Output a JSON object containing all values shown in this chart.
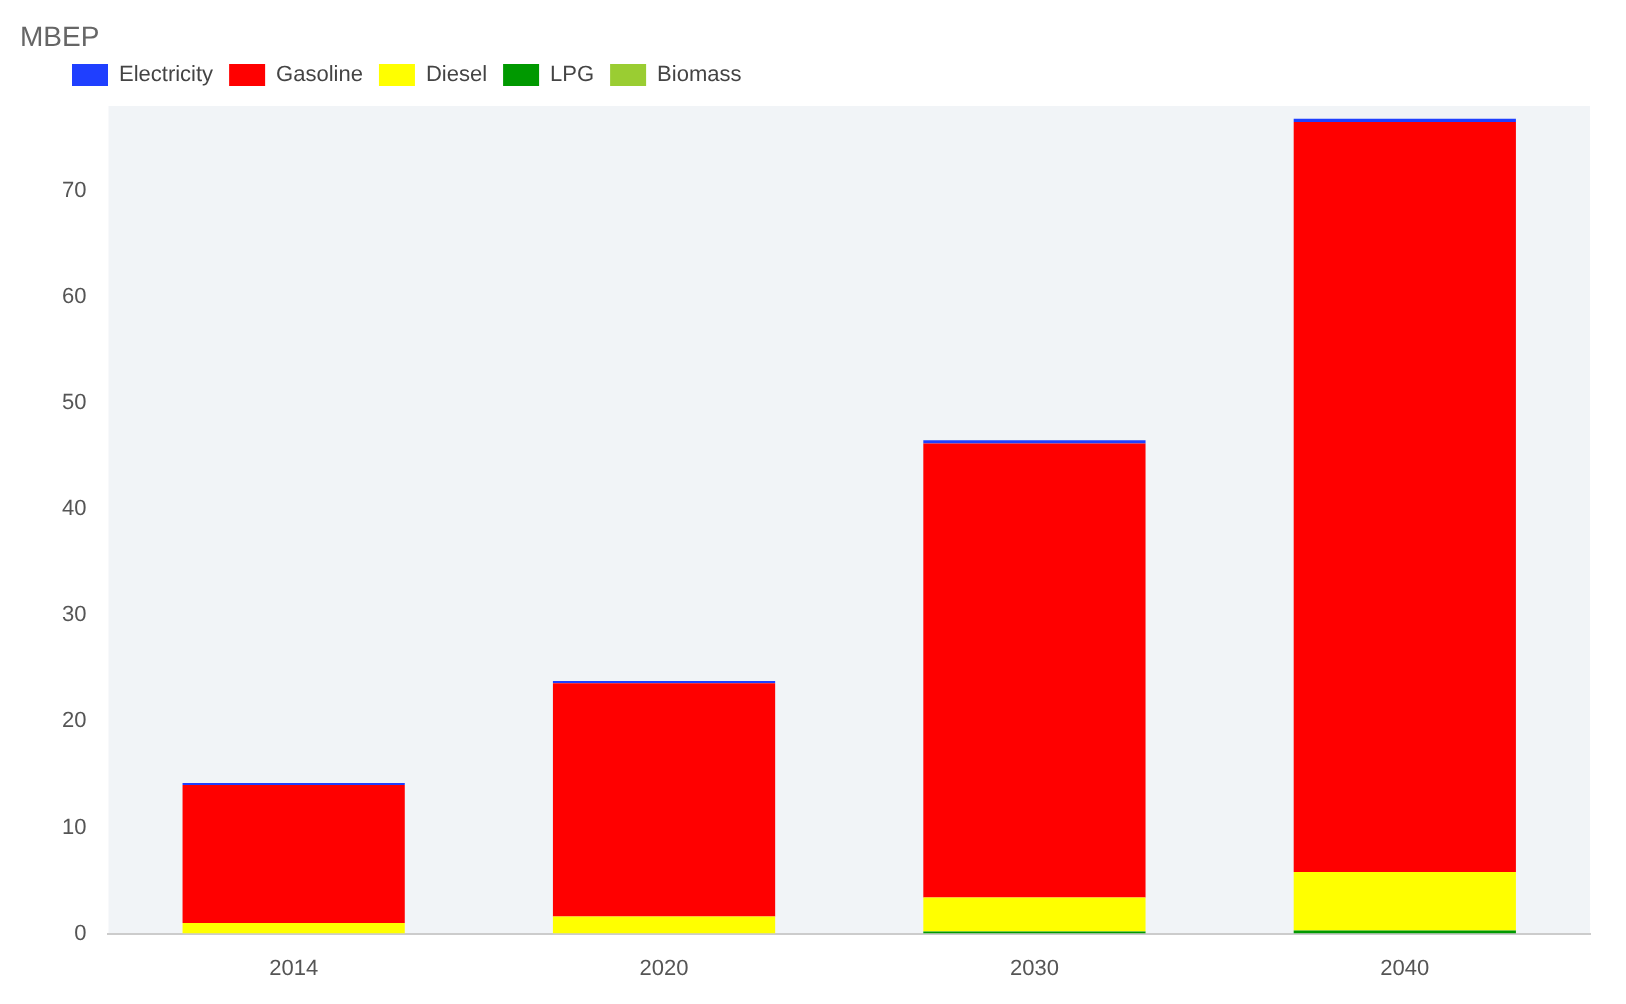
{
  "chart_data": {
    "type": "bar",
    "ylabel": "MBEP",
    "categories": [
      "2014",
      "2020",
      "2030",
      "2040"
    ],
    "stacked": true,
    "series": [
      {
        "name": "Biomass",
        "color": "#9acd32",
        "values": [
          0,
          0,
          0,
          0
        ]
      },
      {
        "name": "LPG",
        "color": "#009900",
        "values": [
          0,
          null,
          0.2,
          0.3
        ]
      },
      {
        "name": "Diesel",
        "color": "#ffff00",
        "values": [
          1.0,
          1.6,
          3.2,
          5.5
        ]
      },
      {
        "name": "Gasoline",
        "color": "#ff0000",
        "values": [
          13.0,
          22.0,
          42.8,
          70.7
        ]
      },
      {
        "name": "Electricity",
        "color": "#1f3fff",
        "values": [
          0.2,
          0.2,
          0.3,
          0.3
        ]
      }
    ],
    "ylim": [
      0,
      78
    ],
    "yticks": [
      0,
      10,
      20,
      30,
      40,
      50,
      60,
      70
    ],
    "grid": false,
    "legend": "top left"
  }
}
